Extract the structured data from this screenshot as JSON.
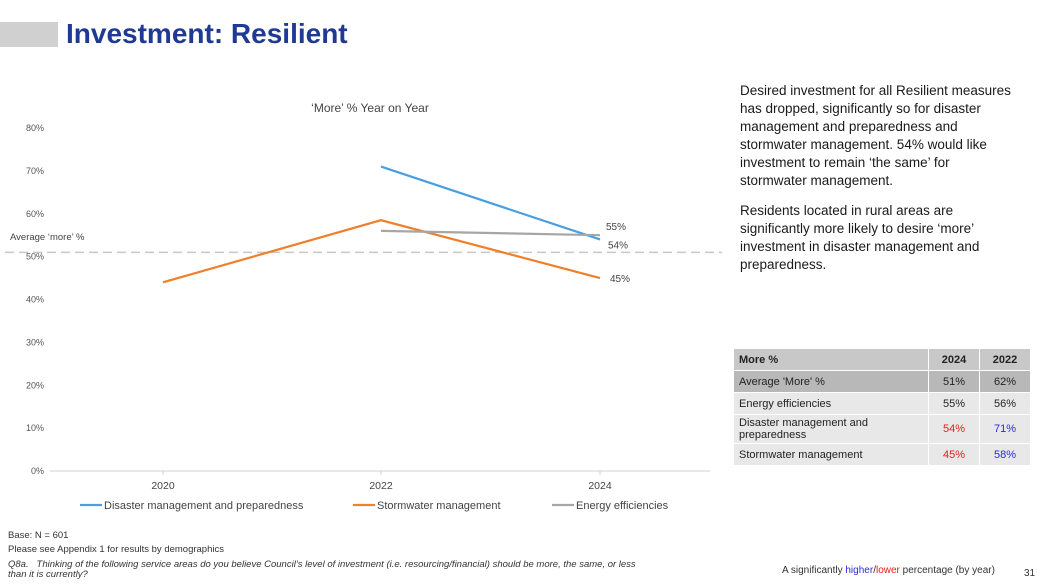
{
  "page": {
    "title": "Investment: Resilient",
    "page_number": "31"
  },
  "commentary": {
    "paragraph1": "Desired investment for all Resilient measures has dropped, significantly so for disaster management and preparedness and stormwater management. 54% would like investment to remain ‘the same’ for stormwater management.",
    "paragraph2": "Residents located in rural areas are significantly more likely to desire ‘more’ investment in disaster management and preparedness."
  },
  "chart_data": {
    "type": "line",
    "title": "‘More’ % Year on Year",
    "x": [
      "2020",
      "2022",
      "2024"
    ],
    "y_ticks": [
      "0%",
      "10%",
      "20%",
      "30%",
      "40%",
      "50%",
      "60%",
      "70%",
      "80%"
    ],
    "ylim": [
      0,
      80
    ],
    "grid": false,
    "legend_position": "bottom",
    "average_line": {
      "label": "Average ‘more’ %",
      "value": 51
    },
    "series": [
      {
        "name": "Disaster management and preparedness",
        "color": "#4a9fe0",
        "values": [
          null,
          71,
          54
        ],
        "end_label": "54%"
      },
      {
        "name": "Stormwater management",
        "color": "#f07f2a",
        "values": [
          44,
          58.5,
          45
        ],
        "end_label": "45%"
      },
      {
        "name": "Energy efficiencies",
        "color": "#a6a6a6",
        "values": [
          null,
          56,
          55
        ],
        "end_label": "55%"
      }
    ]
  },
  "table": {
    "header": [
      "More %",
      "2024",
      "2022"
    ],
    "rows": [
      {
        "label": "Average 'More' %",
        "v2024": "51%",
        "v2022": "62%",
        "c2024": "",
        "c2022": ""
      },
      {
        "label": "Energy efficiencies",
        "v2024": "55%",
        "v2022": "56%",
        "c2024": "",
        "c2022": ""
      },
      {
        "label": "Disaster management and preparedness",
        "v2024": "54%",
        "v2022": "71%",
        "c2024": "lo",
        "c2022": "hi"
      },
      {
        "label": "Stormwater management",
        "v2024": "45%",
        "v2022": "58%",
        "c2024": "lo",
        "c2022": "hi"
      }
    ]
  },
  "footer": {
    "base": "Base: N = 601",
    "appendix": "Please see Appendix 1 for results by demographics",
    "question_id": "Q8a.",
    "question": "Thinking of the following service areas do you believe Council’s level of investment (i.e. resourcing/financial) should be more, the same, or less than it is currently?",
    "sig_prefix": "A significantly ",
    "sig_higher": "higher",
    "sig_slash": "/",
    "sig_lower": "lower",
    "sig_suffix": " percentage (by year)"
  }
}
